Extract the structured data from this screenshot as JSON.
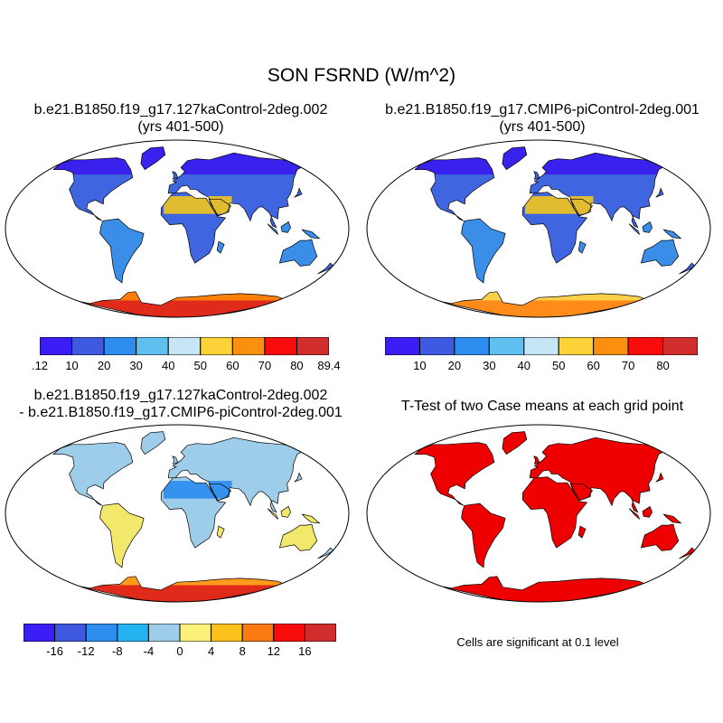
{
  "figure": {
    "title": "SON FSRND (W/m^2)"
  },
  "panels": [
    {
      "id": "case1",
      "title_line1": "b.e21.B1850.f19_g17.127kaControl-2deg.002",
      "title_line2": "(yrs 401-500)",
      "land_palette": {
        "highlat": "#3a22ee",
        "midlat": "#3f66e0",
        "tropic": "#3a8ee8",
        "desert": "#f3c51e",
        "antarctica": "#e02a1a",
        "antarctica_edge": "#ff7f0a"
      }
    },
    {
      "id": "case2",
      "title_line1": "b.e21.B1850.f19_g17.CMIP6-piControl-2deg.001",
      "title_line2": "(yrs 401-500)",
      "land_palette": {
        "highlat": "#3a22ee",
        "midlat": "#3f66e0",
        "tropic": "#3a8ee8",
        "desert": "#f3c51e",
        "antarctica": "#ff8c1a",
        "antarctica_edge": "#ffd04a"
      }
    },
    {
      "id": "diff",
      "title_line1": "b.e21.B1850.f19_g17.127kaControl-2deg.002",
      "title_line2": "- b.e21.B1850.f19_g17.CMIP6-piControl-2deg.001",
      "land_palette": {
        "highlat": "#9ecdea",
        "midlat": "#9ecdea",
        "tropic": "#f2e86b",
        "desert": "#2a8cf0",
        "antarctica": "#e02a1a",
        "antarctica_edge": "#ff9a1a"
      }
    },
    {
      "id": "ttest",
      "title_line1": "T-Test of two Case means at each grid point",
      "title_line2": "",
      "note": "Cells are significant at 0.1 level",
      "land_palette": {
        "highlat": "#ee0000",
        "midlat": "#ee0000",
        "tropic": "#ee0000",
        "desert": "#ee0000",
        "antarctica": "#ee0000",
        "antarctica_edge": "#ee0000"
      }
    }
  ],
  "colorbars": [
    {
      "id": "cb1",
      "colors": [
        "#3a1ef5",
        "#3f5ae0",
        "#2e8ef0",
        "#5fc0f0",
        "#c6e6f6",
        "#fbd338",
        "#fb8f10",
        "#f80c0c",
        "#d22d2d"
      ],
      "labels": [
        ".12",
        "10",
        "20",
        "30",
        "40",
        "50",
        "60",
        "70",
        "80",
        "89.4"
      ],
      "label_mode": "edges_with_ends"
    },
    {
      "id": "cb2",
      "colors": [
        "#3a1ef5",
        "#3f5ae0",
        "#2e8ef0",
        "#5fc0f0",
        "#c6e6f6",
        "#fbd338",
        "#fb8f10",
        "#f80c0c",
        "#d22d2d"
      ],
      "labels": [
        "10",
        "20",
        "30",
        "40",
        "50",
        "60",
        "70",
        "80"
      ],
      "label_mode": "inner_edges"
    },
    {
      "id": "cb3",
      "colors": [
        "#3a1ef5",
        "#3f5ae0",
        "#2e8ef0",
        "#23b3f0",
        "#9ecdea",
        "#fbf07a",
        "#fbc21e",
        "#fb7a10",
        "#f80c0c",
        "#d22d2d"
      ],
      "labels": [
        "-16",
        "-12",
        "-8",
        "-4",
        "0",
        "4",
        "8",
        "12",
        "16"
      ],
      "label_mode": "inner_edges"
    }
  ]
}
